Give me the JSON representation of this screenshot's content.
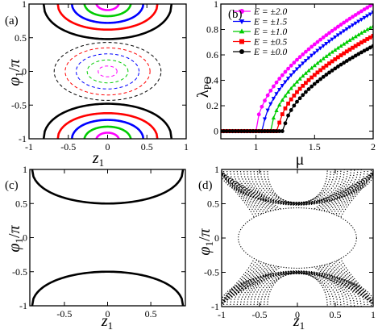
{
  "chart_data": [
    {
      "panel_label": "(a)",
      "type": "line",
      "xlabel": "z1",
      "ylabel": "φ1/π",
      "xlim": [
        -1,
        1
      ],
      "ylim": [
        -1,
        1
      ],
      "xticks": [
        "-1",
        "-0.5",
        "0",
        "0.5",
        "1"
      ],
      "yticks": [
        "-1",
        "-0.5",
        "0",
        "0.5",
        "1"
      ],
      "series": [
        {
          "color": "#000000",
          "style": "solid",
          "z_max": 0.82,
          "phi_reach": 0.48,
          "lobe": "top"
        },
        {
          "color": "#ff0000",
          "style": "solid",
          "z_max": 0.64,
          "phi_reach": 0.62,
          "lobe": "top"
        },
        {
          "color": "#0000ff",
          "style": "solid",
          "z_max": 0.46,
          "phi_reach": 0.72,
          "lobe": "top"
        },
        {
          "color": "#00cc00",
          "style": "solid",
          "z_max": 0.3,
          "phi_reach": 0.82,
          "lobe": "top"
        },
        {
          "color": "#ff00ff",
          "style": "solid",
          "z_max": 0.15,
          "phi_reach": 0.91,
          "lobe": "top"
        },
        {
          "color": "#000000",
          "style": "solid",
          "z_max": 0.82,
          "phi_reach": -0.48,
          "lobe": "bottom"
        },
        {
          "color": "#ff0000",
          "style": "solid",
          "z_max": 0.64,
          "phi_reach": -0.62,
          "lobe": "bottom"
        },
        {
          "color": "#0000ff",
          "style": "solid",
          "z_max": 0.46,
          "phi_reach": -0.72,
          "lobe": "bottom"
        },
        {
          "color": "#00cc00",
          "style": "solid",
          "z_max": 0.3,
          "phi_reach": -0.82,
          "lobe": "bottom"
        },
        {
          "color": "#ff00ff",
          "style": "solid",
          "z_max": 0.15,
          "phi_reach": -0.91,
          "lobe": "bottom"
        },
        {
          "color": "#000000",
          "style": "dashed",
          "z_max": 0.68,
          "phi_max": 0.43,
          "lobe": "center"
        },
        {
          "color": "#ff0000",
          "style": "dashed",
          "z_max": 0.54,
          "phi_max": 0.35,
          "lobe": "center"
        },
        {
          "color": "#0000ff",
          "style": "dashed",
          "z_max": 0.4,
          "phi_max": 0.26,
          "lobe": "center"
        },
        {
          "color": "#00cc00",
          "style": "dashed",
          "z_max": 0.26,
          "phi_max": 0.17,
          "lobe": "center"
        },
        {
          "color": "#ff00ff",
          "style": "dashed",
          "z_max": 0.12,
          "phi_max": 0.08,
          "lobe": "center"
        }
      ]
    },
    {
      "panel_label": "(b)",
      "type": "line",
      "xlabel": "μ",
      "ylabel": "λPO",
      "xlim": [
        0.7,
        2.0
      ],
      "ylim": [
        -0.06,
        1.0
      ],
      "xticks": [
        "1",
        "1.5",
        "2"
      ],
      "yticks": [
        "0",
        "0.2",
        "0.4",
        "0.6",
        "0.8",
        "1"
      ],
      "legend_position": "top-left",
      "series": [
        {
          "name": "E = ±2.0",
          "color": "#ff00ff",
          "marker": "circle",
          "mu_c": 1.0,
          "slope": 1.0
        },
        {
          "name": "E = ±1.5",
          "color": "#0000ff",
          "marker": "triangle-down",
          "mu_c": 1.06,
          "slope": 0.935
        },
        {
          "name": "E = ±1.0",
          "color": "#00cc00",
          "marker": "triangle-up",
          "mu_c": 1.13,
          "slope": 0.825
        },
        {
          "name": "E = ±0.5",
          "color": "#ff0000",
          "marker": "square",
          "mu_c": 1.19,
          "slope": 0.75
        },
        {
          "name": "E = ±0.0",
          "color": "#000000",
          "marker": "circle",
          "mu_c": 1.24,
          "slope": 0.67
        }
      ]
    },
    {
      "panel_label": "(c)",
      "type": "line",
      "xlabel": "z1",
      "ylabel": "φ1/π",
      "xlim": [
        -0.9,
        0.9
      ],
      "ylim": [
        -1,
        1
      ],
      "xticks": [
        "-0.5",
        "0",
        "0.5"
      ],
      "yticks": [
        "-1",
        "-0.5",
        "0",
        "0.5",
        "1"
      ],
      "series": [
        {
          "color": "#000000",
          "style": "solid",
          "z_max": 0.88,
          "phi_reach": 0.5,
          "lobe": "top"
        },
        {
          "color": "#000000",
          "style": "solid",
          "z_max": 0.88,
          "phi_reach": -0.5,
          "lobe": "bottom"
        }
      ]
    },
    {
      "panel_label": "(d)",
      "type": "scatter",
      "xlabel": "z1",
      "ylabel": "φ1/π",
      "xlim": [
        -1,
        1
      ],
      "ylim": [
        -1,
        1
      ],
      "xticks": [
        "-1",
        "-0.5",
        "0",
        "0.5",
        "1"
      ],
      "yticks": [
        "-1",
        "-0.5",
        "0",
        "0.5",
        "1"
      ],
      "series": [
        {
          "color": "#000000",
          "style": "dotted-trajectories",
          "phi_separatrix": 0.5
        }
      ]
    }
  ]
}
